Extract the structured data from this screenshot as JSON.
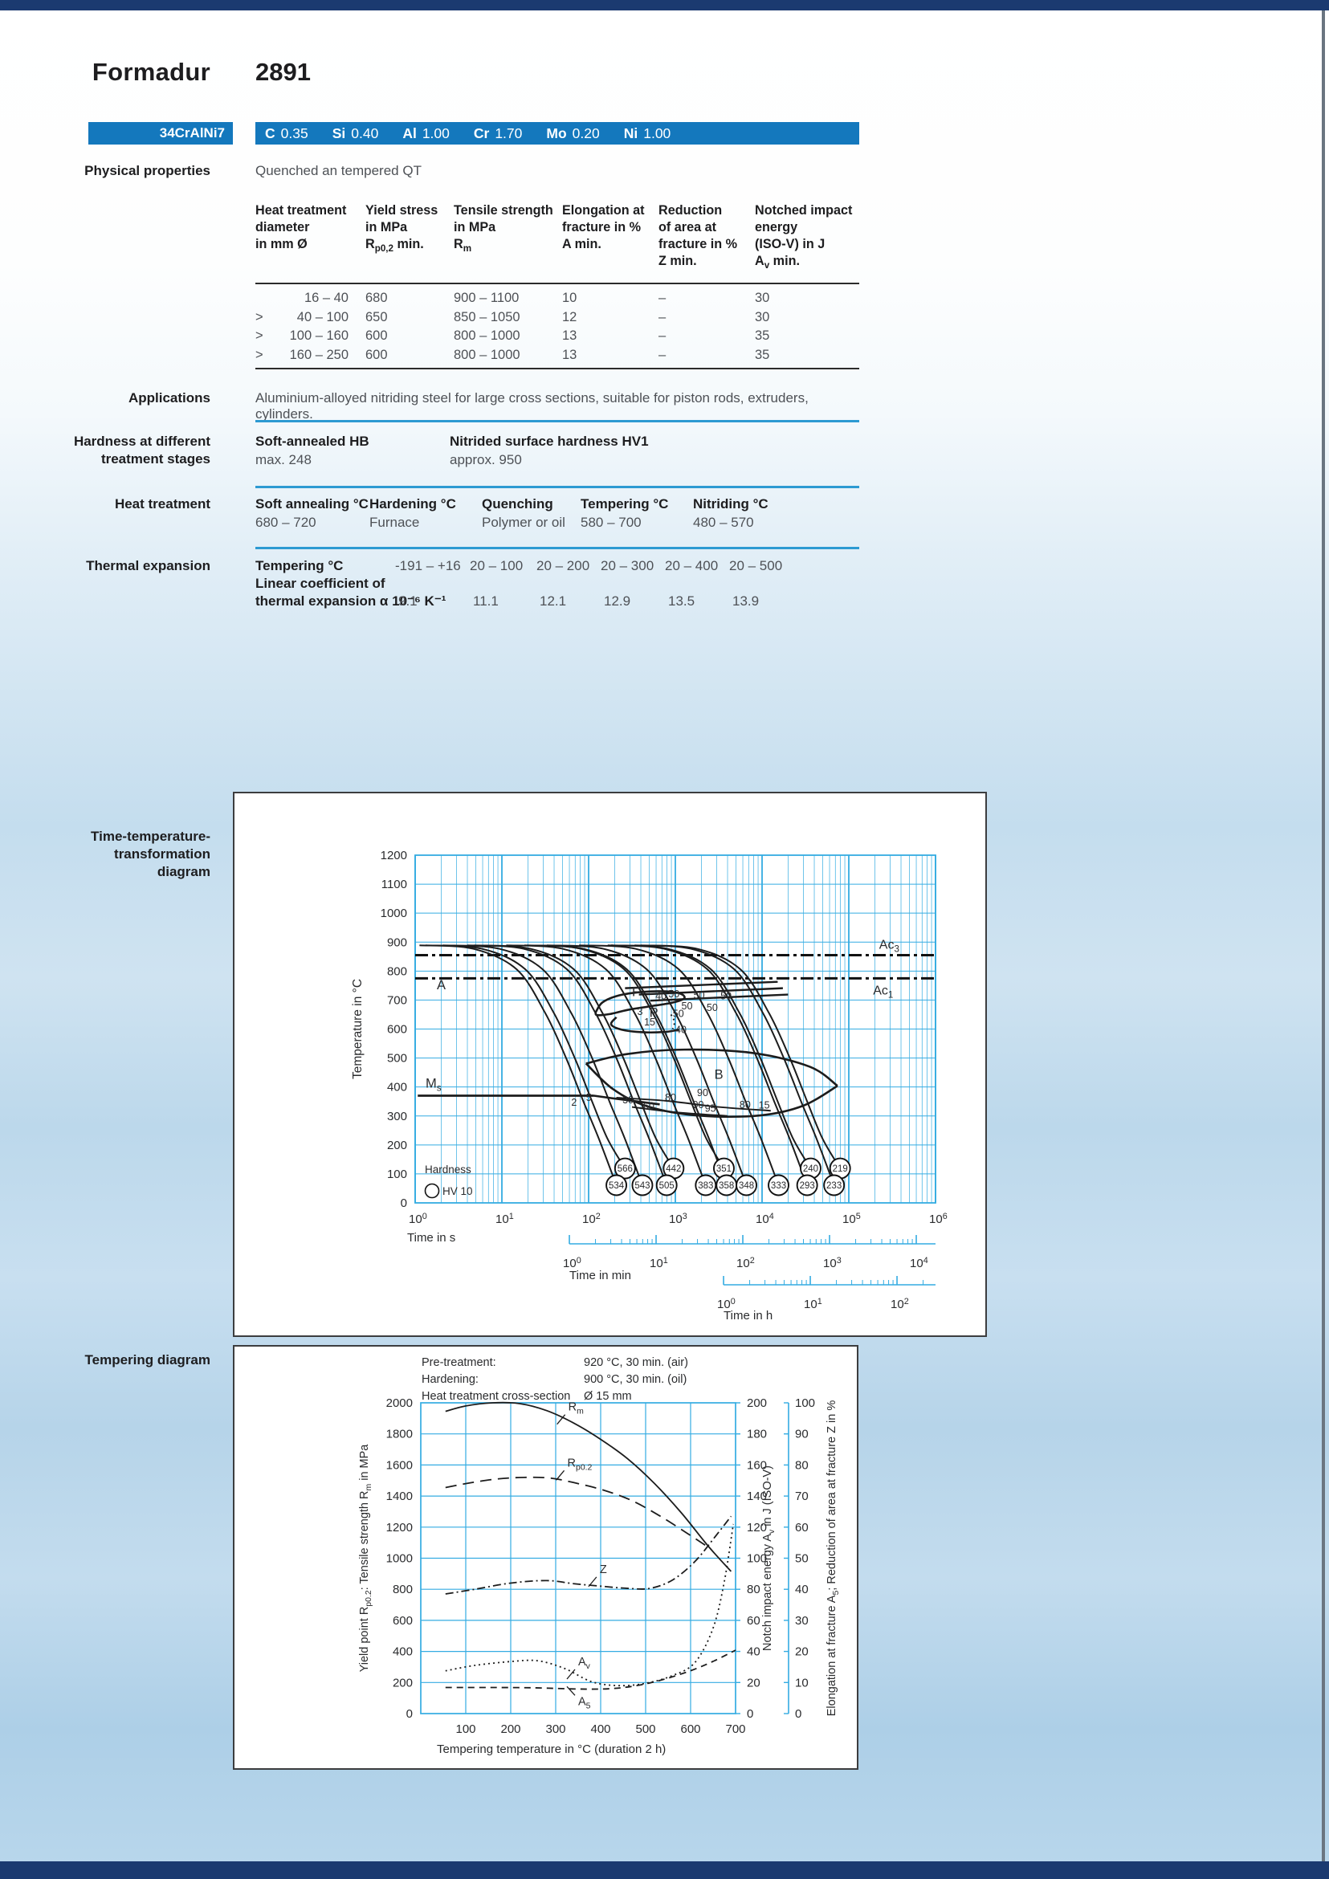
{
  "page": {
    "title_brand": "Formadur",
    "title_grade": "2891",
    "designation": "34CrAlNi7",
    "composition": [
      [
        "C",
        "0.35"
      ],
      [
        "Si",
        "0.40"
      ],
      [
        "Al",
        "1.00"
      ],
      [
        "Cr",
        "1.70"
      ],
      [
        "Mo",
        "0.20"
      ],
      [
        "Ni",
        "1.00"
      ]
    ]
  },
  "physical": {
    "label": "Physical properties",
    "condition": "Quenched an tempered QT",
    "table": {
      "headers": [
        [
          "Heat treatment",
          "diameter",
          "in mm Ø",
          ""
        ],
        [
          "Yield stress",
          "in MPa",
          "R_{p0,2} min.",
          ""
        ],
        [
          "Tensile strength",
          "in MPa",
          "R_{m}",
          ""
        ],
        [
          "Elongation at",
          "fracture in %",
          "A min.",
          ""
        ],
        [
          "Reduction",
          "of area at",
          "fracture in %",
          "Z min."
        ],
        [
          "Notched impact",
          "energy",
          "(ISO-V) in J",
          "A_{v} min."
        ]
      ],
      "rows": [
        [
          "16 –  40",
          "680",
          "900 – 1100",
          "10",
          "–",
          "30"
        ],
        [
          "> 40 – 100",
          "650",
          "850 – 1050",
          "12",
          "–",
          "30"
        ],
        [
          "> 100 – 160",
          "600",
          "800 – 1000",
          "13",
          "–",
          "35"
        ],
        [
          "> 160 – 250",
          "600",
          "800 – 1000",
          "13",
          "–",
          "35"
        ]
      ]
    }
  },
  "applications": {
    "label": "Applications",
    "text": "Aluminium-alloyed nitriding steel for large cross sections, suitable for piston rods, extruders, cylinders."
  },
  "hardness": {
    "label_line1": "Hardness at different",
    "label_line2": "treatment stages",
    "cols": [
      {
        "title": "Soft-annealed HB",
        "value": "max. 248"
      },
      {
        "title": "Nitrided surface hardness HV1",
        "value": "approx. 950"
      }
    ]
  },
  "heat_treatment": {
    "label": "Heat treatment",
    "cols": [
      {
        "title": "Soft annealing °C",
        "value": "680 – 720"
      },
      {
        "title": "Hardening °C",
        "value": "Furnace"
      },
      {
        "title": "Quenching",
        "value": "Polymer or oil"
      },
      {
        "title": "Tempering °C",
        "value": "580 – 700"
      },
      {
        "title": "Nitriding °C",
        "value": "480 – 570"
      }
    ]
  },
  "thermal": {
    "label": "Thermal expansion",
    "title": "Tempering °C",
    "sub1": "Linear coefficient of",
    "sub2": "thermal expansion α 10⁻⁶ K⁻¹",
    "ranges": [
      "-191 – +16",
      "20 – 100",
      "20 – 200",
      "20 – 300",
      "20 – 400",
      "20 – 500"
    ],
    "values": [
      "9.1",
      "11.1",
      "12.1",
      "12.9",
      "13.5",
      "13.9"
    ]
  },
  "ttt_label": [
    "Time-temperature-",
    "transformation",
    "diagram"
  ],
  "tempering_label": "Tempering diagram",
  "chart_data": [
    {
      "type": "line",
      "id": "ttt",
      "title": "Time-temperature-transformation diagram",
      "ylabel": "Temperature in °C",
      "ylim": [
        0,
        1200
      ],
      "ytick_step": 100,
      "x_scale": "log",
      "x_axes": [
        {
          "unit": "Time in s",
          "decade_labels": [
            0,
            1,
            2,
            3,
            4,
            5,
            6
          ],
          "offset_log": 0
        },
        {
          "unit": "Time in min",
          "decade_labels": [
            0,
            1,
            2,
            3,
            4
          ],
          "offset_log": 1.778
        },
        {
          "unit": "Time in h",
          "decade_labels": [
            0,
            1,
            2
          ],
          "offset_log": 3.556
        }
      ],
      "ref_lines": {
        "ac3": {
          "label": "Ac_{3}",
          "temp": 855,
          "label_log": 5.35
        },
        "ac1": {
          "label": "Ac_{1}",
          "temp": 775,
          "label_log": 5.28
        },
        "ms": {
          "label": "M_{s}",
          "temp": 370,
          "label_log": 0.12
        }
      },
      "phase_labels": [
        {
          "text": "A",
          "log": 0.25,
          "temp": 737
        },
        {
          "text": "F",
          "log": 2.5,
          "temp": 713
        },
        {
          "text": "P",
          "log": 2.7,
          "temp": 641
        },
        {
          "text": "B",
          "log": 3.45,
          "temp": 428
        }
      ],
      "percent_labels": [
        {
          "log": 1.8,
          "temp": 336,
          "text": "2"
        },
        {
          "log": 1.97,
          "temp": 352,
          "text": "5"
        },
        {
          "log": 2.39,
          "temp": 344,
          "text": "30"
        },
        {
          "log": 2.63,
          "temp": 323,
          "text": "60"
        },
        {
          "log": 2.88,
          "temp": 352,
          "text": "80"
        },
        {
          "log": 3.25,
          "temp": 369,
          "text": "90"
        },
        {
          "log": 3.2,
          "temp": 327,
          "text": "90"
        },
        {
          "log": 3.34,
          "temp": 315,
          "text": "95"
        },
        {
          "log": 3.74,
          "temp": 327,
          "text": "80"
        },
        {
          "log": 3.96,
          "temp": 325,
          "text": "15"
        },
        {
          "log": 2.56,
          "temp": 649,
          "text": "3"
        },
        {
          "log": 2.64,
          "temp": 612,
          "text": "15"
        },
        {
          "log": 2.77,
          "temp": 703,
          "text": "40"
        },
        {
          "log": 2.92,
          "temp": 709,
          "text": "50"
        },
        {
          "log": 3.21,
          "temp": 706,
          "text": "50"
        },
        {
          "log": 3.52,
          "temp": 702,
          "text": "50"
        },
        {
          "log": 3.07,
          "temp": 668,
          "text": "50"
        },
        {
          "log": 3.36,
          "temp": 663,
          "text": "50"
        },
        {
          "log": 2.97,
          "temp": 641,
          "text": "50"
        },
        {
          "log": 3.0,
          "temp": 586,
          "text": "40"
        }
      ],
      "hardness_legend": [
        "Hardness",
        "HV 10"
      ],
      "hardness_circles": {
        "upper": [
          {
            "log": 2.42,
            "hv": 566
          },
          {
            "log": 2.98,
            "hv": 442
          },
          {
            "log": 3.56,
            "hv": 351
          },
          {
            "log": 4.56,
            "hv": 240
          },
          {
            "log": 4.9,
            "hv": 219
          }
        ],
        "lower": [
          {
            "log": 2.32,
            "hv": 534
          },
          {
            "log": 2.62,
            "hv": 543
          },
          {
            "log": 2.9,
            "hv": 505
          },
          {
            "log": 3.35,
            "hv": 383
          },
          {
            "log": 3.59,
            "hv": 358
          },
          {
            "log": 3.82,
            "hv": 348
          },
          {
            "log": 4.19,
            "hv": 333
          },
          {
            "log": 4.52,
            "hv": 293
          },
          {
            "log": 4.83,
            "hv": 233
          }
        ]
      },
      "boundaries": {
        "ms_main": [
          [
            0.03,
            370
          ],
          [
            2.06,
            370
          ]
        ],
        "ms_ext": [
          [
            2.06,
            370
          ],
          [
            2.3,
            360
          ],
          [
            2.56,
            350
          ],
          [
            2.82,
            340
          ]
        ],
        "f_region": [
          [
            2.08,
            657
          ],
          [
            2.16,
            692
          ],
          [
            2.35,
            716
          ],
          [
            2.62,
            728
          ],
          [
            2.88,
            730
          ],
          [
            3.06,
            722
          ],
          [
            3.1,
            705
          ],
          [
            2.95,
            690
          ],
          [
            2.7,
            678
          ],
          [
            2.45,
            666
          ],
          [
            2.25,
            652
          ],
          [
            2.1,
            648
          ],
          [
            2.08,
            657
          ]
        ],
        "p_region": [
          [
            2.32,
            641
          ],
          [
            2.26,
            616
          ],
          [
            2.38,
            598
          ],
          [
            2.62,
            589
          ],
          [
            2.88,
            590
          ],
          [
            3.04,
            598
          ]
        ],
        "finish_lines": [
          [
            [
              2.42,
              741
            ],
            [
              4.18,
              763
            ]
          ],
          [
            [
              2.58,
              719
            ],
            [
              4.24,
              741
            ]
          ],
          [
            [
              2.71,
              698
            ],
            [
              4.3,
              719
            ]
          ]
        ],
        "bainite_upper": [
          [
            1.97,
            481
          ],
          [
            2.45,
            514
          ],
          [
            3.1,
            529
          ],
          [
            3.9,
            517
          ],
          [
            4.55,
            470
          ],
          [
            4.87,
            404
          ]
        ],
        "bainite_lower": [
          [
            1.97,
            481
          ],
          [
            2.28,
            393
          ],
          [
            2.68,
            333
          ],
          [
            3.28,
            301
          ],
          [
            3.98,
            302
          ],
          [
            4.48,
            336
          ],
          [
            4.87,
            404
          ]
        ],
        "bainite_inner": [
          [
            [
              2.32,
              363
            ],
            [
              2.9,
              352
            ],
            [
              3.5,
              331
            ],
            [
              4.1,
              318
            ]
          ],
          [
            [
              2.5,
              331
            ],
            [
              3.0,
              313
            ],
            [
              3.6,
              300
            ]
          ]
        ],
        "dotted_seg": [
          [
            2.95,
            650
          ],
          [
            2.99,
            625
          ],
          [
            2.97,
            600
          ]
        ]
      }
    },
    {
      "type": "line",
      "id": "tempering",
      "title": "Tempering diagram",
      "pretreatment": [
        [
          "Pre-treatment:",
          "920 °C, 30 min. (air)"
        ],
        [
          "Hardening:",
          "900 °C, 30 min. (oil)"
        ],
        [
          "Heat treatment cross-section",
          "Ø 15 mm"
        ]
      ],
      "xlabel": "Tempering temperature in °C (duration 2 h)",
      "xlim": [
        0,
        700
      ],
      "xtick_step": 100,
      "axes": [
        {
          "id": "left",
          "label": "Yield point R_{p0.2}: Tensile strength R_{m} in MPa",
          "lim": [
            0,
            2000
          ],
          "step": 200
        },
        {
          "id": "mid",
          "label": "Notch impact energy A_{v} in J (ISO-V)",
          "lim": [
            0,
            200
          ],
          "step": 20
        },
        {
          "id": "right",
          "label": "Elongation at fracture A_{5}; Reduction of area at fracture Z in %",
          "lim": [
            0,
            100
          ],
          "step": 10
        }
      ],
      "series": [
        {
          "name": "R_{m}",
          "axis": "left",
          "dash": "solid",
          "points": [
            [
              55,
              1945
            ],
            [
              100,
              1980
            ],
            [
              160,
              2000
            ],
            [
              220,
              1995
            ],
            [
              280,
              1950
            ],
            [
              340,
              1870
            ],
            [
              400,
              1765
            ],
            [
              460,
              1640
            ],
            [
              520,
              1480
            ],
            [
              580,
              1290
            ],
            [
              640,
              1075
            ],
            [
              690,
              915
            ]
          ]
        },
        {
          "name": "R_{p0.2}",
          "axis": "left",
          "dash": "longdash",
          "points": [
            [
              55,
              1455
            ],
            [
              110,
              1485
            ],
            [
              170,
              1510
            ],
            [
              230,
              1520
            ],
            [
              290,
              1515
            ],
            [
              350,
              1480
            ],
            [
              410,
              1435
            ],
            [
              470,
              1370
            ],
            [
              530,
              1275
            ],
            [
              590,
              1165
            ],
            [
              645,
              1060
            ]
          ]
        },
        {
          "name": "Z",
          "axis": "right",
          "dash": "dashdot",
          "points": [
            [
              55,
              38.5
            ],
            [
              120,
              40
            ],
            [
              200,
              42
            ],
            [
              280,
              42.8
            ],
            [
              340,
              41.8
            ],
            [
              400,
              41
            ],
            [
              460,
              40.3
            ],
            [
              510,
              40.3
            ],
            [
              560,
              43
            ],
            [
              610,
              49
            ],
            [
              655,
              57
            ],
            [
              690,
              63.5
            ]
          ]
        },
        {
          "name": "A_{v}",
          "axis": "mid",
          "dash": "dotted",
          "points": [
            [
              55,
              27.5
            ],
            [
              120,
              31
            ],
            [
              200,
              33.5
            ],
            [
              260,
              34
            ],
            [
              320,
              29
            ],
            [
              380,
              20.5
            ],
            [
              440,
              18
            ],
            [
              500,
              19.5
            ],
            [
              560,
              24.5
            ],
            [
              610,
              33
            ],
            [
              650,
              55
            ],
            [
              675,
              85
            ],
            [
              695,
              122
            ]
          ]
        },
        {
          "name": "A_{5}",
          "axis": "right",
          "dash": "dash",
          "points": [
            [
              55,
              8.4
            ],
            [
              150,
              8.4
            ],
            [
              250,
              8.3
            ],
            [
              350,
              7.9
            ],
            [
              420,
              8
            ],
            [
              480,
              9
            ],
            [
              540,
              11
            ],
            [
              600,
              13.8
            ],
            [
              650,
              16.8
            ],
            [
              700,
              20.4
            ]
          ]
        }
      ],
      "series_label_pos": [
        {
          "i": 0,
          "x": 328,
          "val": 1950
        },
        {
          "i": 1,
          "x": 326,
          "val": 1590
        },
        {
          "i": 2,
          "x": 398,
          "val": 905
        },
        {
          "i": 3,
          "x": 350,
          "val": 310
        },
        {
          "i": 4,
          "x": 350,
          "val": 55
        }
      ]
    }
  ],
  "colors": {
    "accent_blue": "#1478bd",
    "grid_cyan": "#34ace2",
    "rule_blue": "#2d9ad2",
    "bar_navy": "#1b3a70",
    "text_dark": "#1d1d1f",
    "text_gray": "#4e5156",
    "curve_black": "#1c1c1c"
  }
}
